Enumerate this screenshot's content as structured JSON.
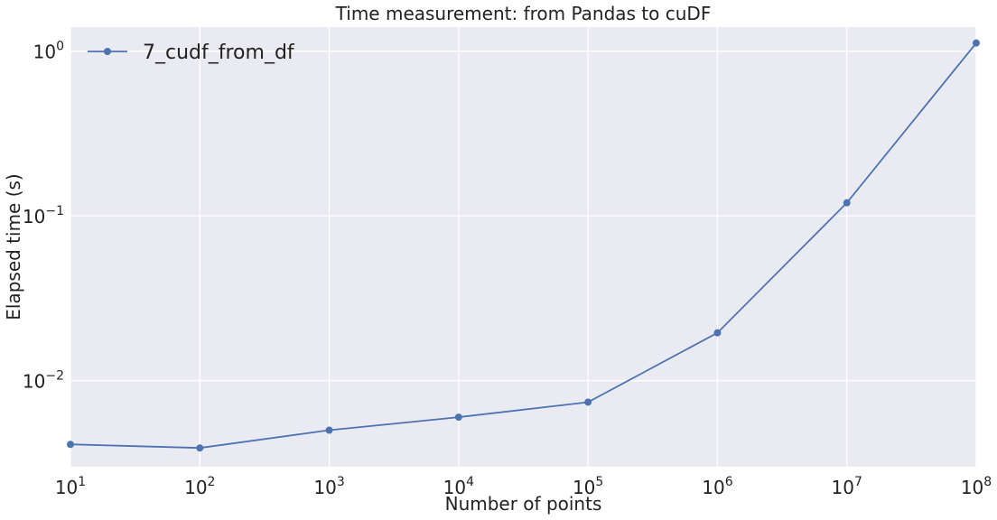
{
  "chart_data": {
    "type": "line",
    "title": "Time measurement: from Pandas to cuDF",
    "xlabel": "Number of points",
    "ylabel": "Elapsed time (s)",
    "xscale": "log",
    "yscale": "log",
    "xlim": [
      10,
      100000000
    ],
    "ylim": [
      0.003,
      1.4
    ],
    "grid": true,
    "legend_position": "top-left",
    "background_color": "#eaeaf2",
    "grid_color": "#ffffff",
    "x_ticks": [
      {
        "value": 10,
        "base": "10",
        "exp": "1"
      },
      {
        "value": 100,
        "base": "10",
        "exp": "2"
      },
      {
        "value": 1000,
        "base": "10",
        "exp": "3"
      },
      {
        "value": 10000,
        "base": "10",
        "exp": "4"
      },
      {
        "value": 100000,
        "base": "10",
        "exp": "5"
      },
      {
        "value": 1000000,
        "base": "10",
        "exp": "6"
      },
      {
        "value": 10000000,
        "base": "10",
        "exp": "7"
      },
      {
        "value": 100000000,
        "base": "10",
        "exp": "8"
      }
    ],
    "y_ticks": [
      {
        "value": 0.01,
        "base": "10",
        "exp": "−2"
      },
      {
        "value": 0.1,
        "base": "10",
        "exp": "−1"
      },
      {
        "value": 1,
        "base": "10",
        "exp": "0"
      }
    ],
    "series": [
      {
        "name": "7_cudf_from_df",
        "color": "#4c72b0",
        "marker": "circle",
        "x": [
          10,
          100,
          1000,
          10000,
          100000,
          1000000,
          10000000,
          100000000
        ],
        "y": [
          0.0041,
          0.0039,
          0.005,
          0.006,
          0.0074,
          0.0195,
          0.12,
          1.12
        ]
      }
    ]
  }
}
